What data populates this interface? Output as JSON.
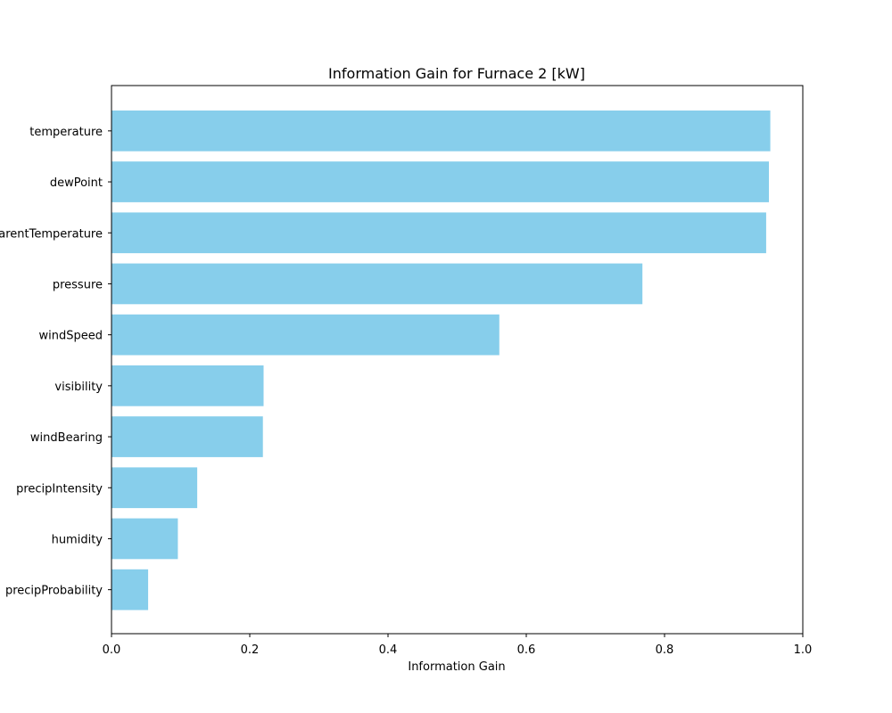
{
  "chart_data": {
    "type": "bar",
    "orientation": "horizontal",
    "title": "Information Gain for Furnace 2 [kW]",
    "xlabel": "Information Gain",
    "ylabel": "",
    "xlim": [
      0.0,
      1.0
    ],
    "xticks": [
      "0.0",
      "0.2",
      "0.4",
      "0.6",
      "0.8",
      "1.0"
    ],
    "categories": [
      "temperature",
      "dewPoint",
      "apparentTemperature",
      "pressure",
      "windSpeed",
      "visibility",
      "windBearing",
      "precipIntensity",
      "humidity",
      "precipProbability"
    ],
    "values": [
      0.953,
      0.951,
      0.947,
      0.768,
      0.561,
      0.22,
      0.219,
      0.124,
      0.096,
      0.053
    ],
    "bar_color": "#87ceeb",
    "grid": false
  }
}
